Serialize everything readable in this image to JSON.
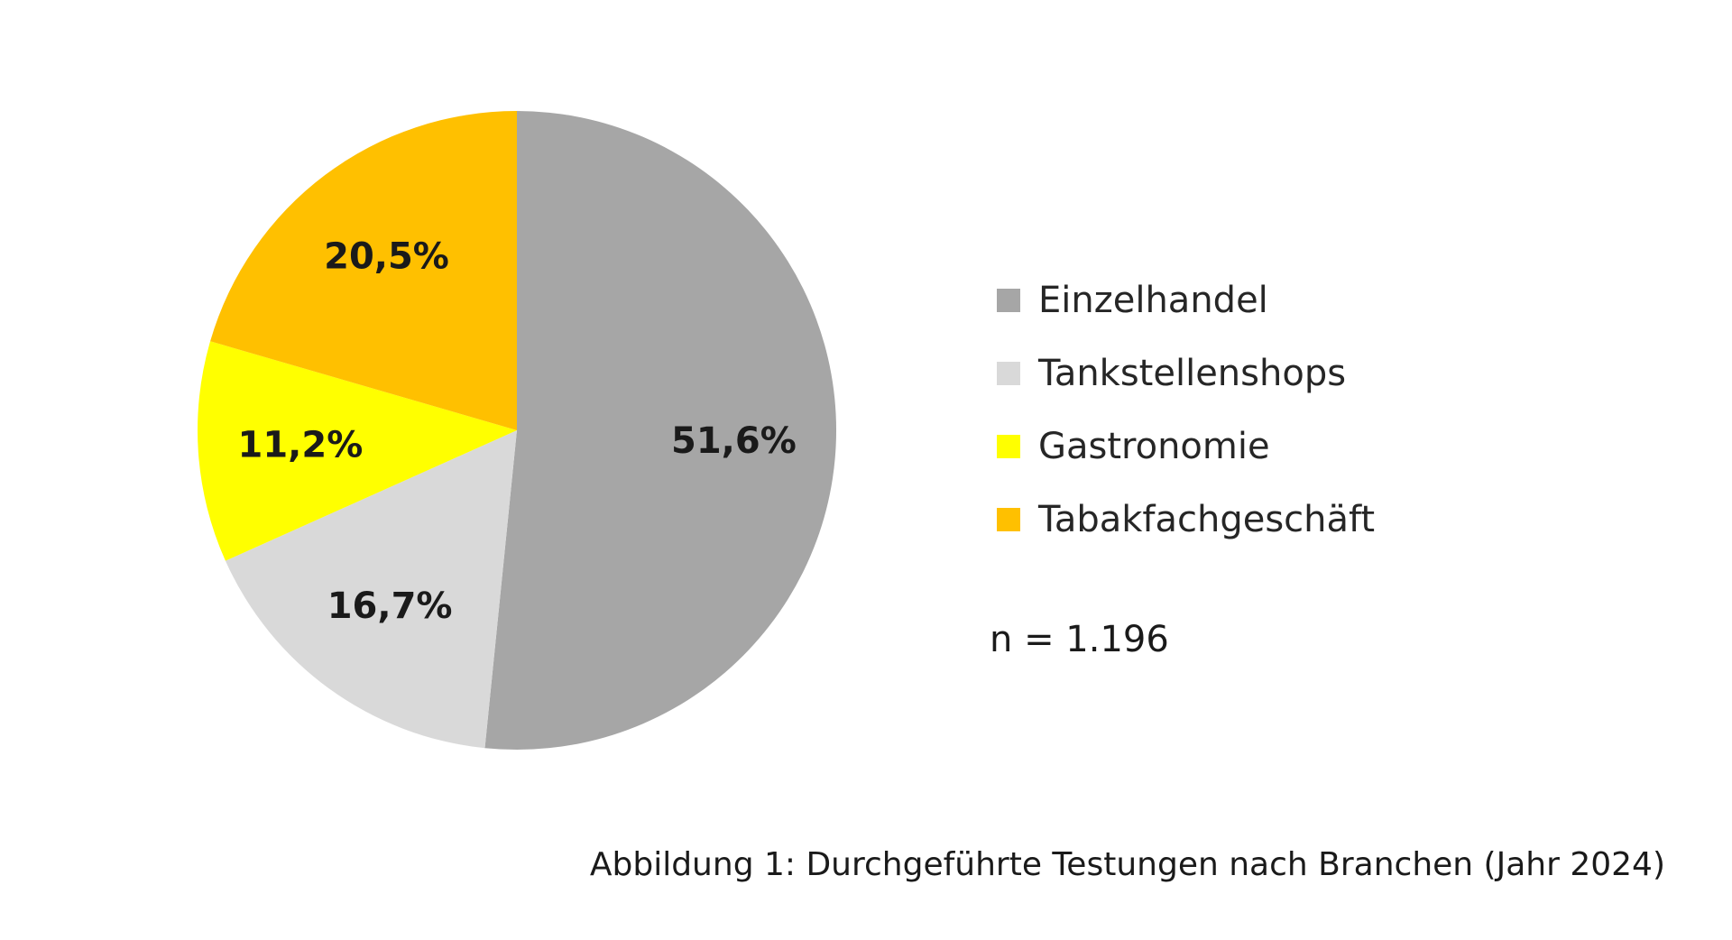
{
  "chart_data": {
    "type": "pie",
    "categories": [
      "Einzelhandel",
      "Tankstellenshops",
      "Gastronomie",
      "Tabakfachgeschäft"
    ],
    "values": [
      51.6,
      16.7,
      11.2,
      20.5
    ],
    "value_labels": [
      "51,6%",
      "16,7%",
      "11,2%",
      "20,5%"
    ],
    "colors": [
      "#a6a6a6",
      "#d9d9d9",
      "#ffff00",
      "#ffc000"
    ],
    "legend_placement": "right",
    "annotation": "n = 1.196"
  },
  "caption": "Abbildung 1: Durchgeführte Testungen nach Branchen (Jahr 2024)"
}
